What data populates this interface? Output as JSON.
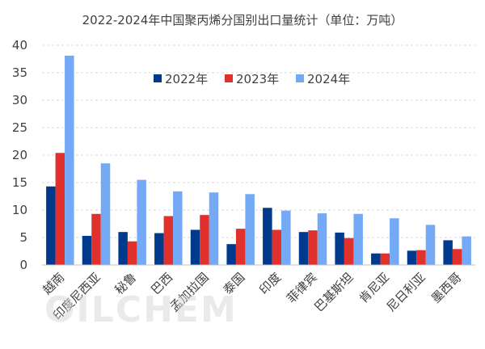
{
  "chart_data": {
    "type": "bar",
    "title": "2022-2024年中国聚丙烯分国别出口量统计（单位：万吨）",
    "categories": [
      "越南",
      "印度尼西亚",
      "秘鲁",
      "巴西",
      "孟加拉国",
      "泰国",
      "印度",
      "菲律宾",
      "巴基斯坦",
      "肯尼亚",
      "尼日利亚",
      "墨西哥"
    ],
    "series": [
      {
        "name": "2022年",
        "color": "#003A8C",
        "values": [
          14.3,
          5.3,
          6.0,
          5.8,
          6.4,
          3.8,
          10.4,
          6.0,
          5.9,
          2.1,
          2.6,
          4.5
        ]
      },
      {
        "name": "2023年",
        "color": "#E0312C",
        "values": [
          20.4,
          9.3,
          4.3,
          8.9,
          9.1,
          6.6,
          6.4,
          6.3,
          4.9,
          2.1,
          2.7,
          2.9
        ]
      },
      {
        "name": "2024年",
        "color": "#73A9F5",
        "values": [
          38.1,
          18.5,
          15.5,
          13.4,
          13.2,
          12.9,
          9.9,
          9.4,
          9.3,
          8.5,
          7.3,
          5.2
        ]
      }
    ],
    "ylim": [
      0,
      40
    ],
    "yticks": [
      0,
      5,
      10,
      15,
      20,
      25,
      30,
      35,
      40
    ],
    "grid": true,
    "legend_position": "top-center"
  },
  "watermark": "OILCHEM"
}
